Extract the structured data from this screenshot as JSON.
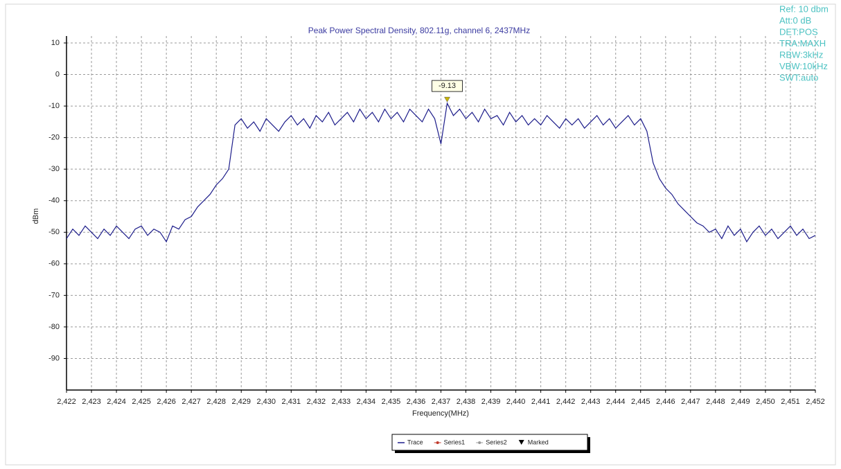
{
  "chart_data": {
    "type": "line",
    "title": "Peak Power Spectral Density, 802.11g, channel 6, 2437MHz",
    "x_label": "Frequency(MHz)",
    "y_label": "dBm",
    "info": [
      "Ref: 10 dbm",
      "Att:0 dB",
      "DET:POS",
      "TRA:MAXH",
      "RBW:3kHz",
      "VBW:10kHz",
      "SWT:auto"
    ],
    "xlim": [
      2422,
      2452
    ],
    "ylim": [
      -100,
      10
    ],
    "yticks": [
      10,
      0,
      -10,
      -20,
      -30,
      -40,
      -50,
      -60,
      -70,
      -80,
      -90
    ],
    "xticks": [
      {
        "value": 2422,
        "label": "2,422"
      },
      {
        "value": 2423,
        "label": "2,423"
      },
      {
        "value": 2424,
        "label": "2,424"
      },
      {
        "value": 2425,
        "label": "2,425"
      },
      {
        "value": 2426,
        "label": "2,426"
      },
      {
        "value": 2427,
        "label": "2,427"
      },
      {
        "value": 2428,
        "label": "2,428"
      },
      {
        "value": 2429,
        "label": "2,429"
      },
      {
        "value": 2430,
        "label": "2,430"
      },
      {
        "value": 2431,
        "label": "2,431"
      },
      {
        "value": 2432,
        "label": "2,432"
      },
      {
        "value": 2433,
        "label": "2,433"
      },
      {
        "value": 2434,
        "label": "2,434"
      },
      {
        "value": 2435,
        "label": "2,435"
      },
      {
        "value": 2436,
        "label": "2,436"
      },
      {
        "value": 2437,
        "label": "2,437"
      },
      {
        "value": 2438,
        "label": "2,438"
      },
      {
        "value": 2439,
        "label": "2,439"
      },
      {
        "value": 2440,
        "label": "2,440"
      },
      {
        "value": 2441,
        "label": "2,441"
      },
      {
        "value": 2442,
        "label": "2,442"
      },
      {
        "value": 2443,
        "label": "2,443"
      },
      {
        "value": 2444,
        "label": "2,444"
      },
      {
        "value": 2445,
        "label": "2,445"
      },
      {
        "value": 2446,
        "label": "2,446"
      },
      {
        "value": 2447,
        "label": "2,447"
      },
      {
        "value": 2448,
        "label": "2,448"
      },
      {
        "value": 2449,
        "label": "2,449"
      },
      {
        "value": 2450,
        "label": "2,450"
      },
      {
        "value": 2451,
        "label": "2,451"
      },
      {
        "value": 2452,
        "label": "2,452"
      }
    ],
    "grid": true,
    "x": [
      2422,
      2422.25,
      2422.5,
      2422.75,
      2423,
      2423.25,
      2423.5,
      2423.75,
      2424,
      2424.25,
      2424.5,
      2424.75,
      2425,
      2425.25,
      2425.5,
      2425.75,
      2426,
      2426.25,
      2426.5,
      2426.75,
      2427,
      2427.25,
      2427.5,
      2427.75,
      2428,
      2428.25,
      2428.5,
      2428.75,
      2429,
      2429.25,
      2429.5,
      2429.75,
      2430,
      2430.25,
      2430.5,
      2430.75,
      2431,
      2431.25,
      2431.5,
      2431.75,
      2432,
      2432.25,
      2432.5,
      2432.75,
      2433,
      2433.25,
      2433.5,
      2433.75,
      2434,
      2434.25,
      2434.5,
      2434.75,
      2435,
      2435.25,
      2435.5,
      2435.75,
      2436,
      2436.25,
      2436.5,
      2436.75,
      2437,
      2437.25,
      2437.5,
      2437.75,
      2438,
      2438.25,
      2438.5,
      2438.75,
      2439,
      2439.25,
      2439.5,
      2439.75,
      2440,
      2440.25,
      2440.5,
      2440.75,
      2441,
      2441.25,
      2441.5,
      2441.75,
      2442,
      2442.25,
      2442.5,
      2442.75,
      2443,
      2443.25,
      2443.5,
      2443.75,
      2444,
      2444.25,
      2444.5,
      2444.75,
      2445,
      2445.25,
      2445.5,
      2445.75,
      2446,
      2446.25,
      2446.5,
      2446.75,
      2447,
      2447.25,
      2447.5,
      2447.75,
      2448,
      2448.25,
      2448.5,
      2448.75,
      2449,
      2449.25,
      2449.5,
      2449.75,
      2450,
      2450.25,
      2450.5,
      2450.75,
      2451,
      2451.25,
      2451.5,
      2451.75,
      2452
    ],
    "series": [
      {
        "color": "#1c1c8a",
        "values": [
          -52,
          -49,
          -51,
          -48,
          -50,
          -52,
          -49,
          -51,
          -48,
          -50,
          -52,
          -49,
          -48,
          -51,
          -49,
          -50,
          -53,
          -48,
          -49,
          -46,
          -45,
          -42,
          -40,
          -38,
          -35,
          -33,
          -30,
          -16,
          -14,
          -17,
          -15,
          -18,
          -14,
          -16,
          -18,
          -15,
          -13,
          -16,
          -14,
          -17,
          -13,
          -15,
          -12,
          -16,
          -14,
          -12,
          -15,
          -11,
          -14,
          -12,
          -15,
          -11,
          -14,
          -12,
          -15,
          -11,
          -13,
          -15,
          -11,
          -14,
          -22,
          -9.13,
          -13,
          -11,
          -14,
          -12,
          -15,
          -11,
          -14,
          -13,
          -16,
          -12,
          -15,
          -13,
          -16,
          -14,
          -16,
          -13,
          -15,
          -17,
          -14,
          -16,
          -14,
          -17,
          -15,
          -13,
          -16,
          -14,
          -17,
          -15,
          -13,
          -16,
          -14,
          -18,
          -28,
          -33,
          -36,
          -38,
          -41,
          -43,
          -45,
          -47,
          -48,
          -50,
          -49,
          -52,
          -48,
          -51,
          -49,
          -53,
          -50,
          -48,
          -51,
          -49,
          -52,
          -50,
          -48,
          -51,
          -49,
          -52,
          -51
        ]
      }
    ],
    "marker": {
      "x": 2437.25,
      "value": -9.13,
      "color": "#c8b400"
    },
    "legend": [
      {
        "name": "Trace",
        "color": "#1c1c8a",
        "symbol": "line"
      },
      {
        "name": "Series1",
        "color": "#c0392b",
        "symbol": "dot"
      },
      {
        "name": "Series2",
        "color": "#999999",
        "symbol": "dot"
      },
      {
        "name": "Marked",
        "color": "#000000",
        "symbol": "triangle"
      }
    ]
  }
}
